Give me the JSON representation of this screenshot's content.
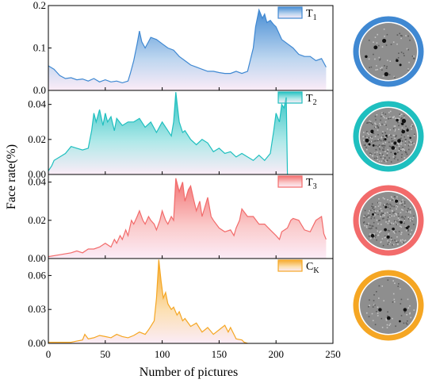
{
  "chart_data": {
    "type": "area",
    "xlabel": "Number of pictures",
    "ylabel": "Face rate(%)",
    "xlim": [
      0,
      250
    ],
    "x_ticks": [
      0,
      50,
      100,
      150,
      200,
      250
    ],
    "x_tick_labels": [
      "0",
      "50",
      "100",
      "150",
      "200",
      "250"
    ],
    "grid": false,
    "legend_position": "top-right",
    "panels": [
      {
        "name": "T",
        "subscript": "1",
        "color": "#3f88d2",
        "ylim": [
          0,
          0.2
        ],
        "yticks": [
          0,
          0.1,
          0.2
        ],
        "ytick_labels": [
          "0.0",
          "0.1",
          "0.2"
        ],
        "x": [
          0,
          5,
          10,
          15,
          20,
          25,
          30,
          35,
          40,
          45,
          50,
          55,
          60,
          65,
          70,
          72,
          75,
          78,
          80,
          82,
          85,
          88,
          90,
          95,
          100,
          105,
          110,
          115,
          120,
          125,
          130,
          135,
          140,
          145,
          150,
          155,
          160,
          165,
          170,
          175,
          180,
          182,
          185,
          188,
          190,
          192,
          195,
          198,
          200,
          205,
          210,
          215,
          220,
          225,
          230,
          235,
          240,
          244
        ],
        "y": [
          0.058,
          0.05,
          0.035,
          0.028,
          0.03,
          0.025,
          0.027,
          0.022,
          0.028,
          0.02,
          0.025,
          0.02,
          0.022,
          0.018,
          0.022,
          0.04,
          0.07,
          0.11,
          0.14,
          0.115,
          0.1,
          0.115,
          0.125,
          0.12,
          0.11,
          0.1,
          0.095,
          0.08,
          0.07,
          0.06,
          0.055,
          0.05,
          0.045,
          0.045,
          0.042,
          0.04,
          0.04,
          0.045,
          0.04,
          0.045,
          0.1,
          0.15,
          0.19,
          0.17,
          0.18,
          0.16,
          0.165,
          0.155,
          0.15,
          0.12,
          0.11,
          0.1,
          0.085,
          0.08,
          0.08,
          0.07,
          0.075,
          0.055
        ]
      },
      {
        "name": "T",
        "subscript": "2",
        "color": "#1fbfbf",
        "ylim": [
          0,
          0.048
        ],
        "yticks": [
          0,
          0.02,
          0.04
        ],
        "ytick_labels": [
          "0.00",
          "0.02",
          "0.04"
        ],
        "x": [
          0,
          3,
          5,
          10,
          15,
          20,
          25,
          30,
          35,
          38,
          40,
          42,
          45,
          48,
          50,
          52,
          55,
          58,
          60,
          65,
          70,
          75,
          80,
          85,
          90,
          95,
          100,
          105,
          108,
          110,
          112,
          115,
          118,
          120,
          125,
          130,
          135,
          140,
          145,
          150,
          155,
          160,
          165,
          170,
          175,
          180,
          185,
          190,
          195,
          198,
          200,
          203,
          205,
          207,
          209,
          210
        ],
        "y": [
          0.002,
          0.005,
          0.008,
          0.01,
          0.012,
          0.016,
          0.015,
          0.014,
          0.015,
          0.025,
          0.035,
          0.03,
          0.037,
          0.028,
          0.035,
          0.03,
          0.033,
          0.025,
          0.032,
          0.028,
          0.03,
          0.03,
          0.032,
          0.027,
          0.03,
          0.024,
          0.03,
          0.025,
          0.022,
          0.03,
          0.047,
          0.03,
          0.024,
          0.025,
          0.02,
          0.017,
          0.02,
          0.018,
          0.013,
          0.015,
          0.012,
          0.013,
          0.01,
          0.012,
          0.01,
          0.008,
          0.011,
          0.008,
          0.012,
          0.025,
          0.035,
          0.03,
          0.04,
          0.038,
          0.044,
          0.0
        ]
      },
      {
        "name": "T",
        "subscript": "3",
        "color": "#f26b6b",
        "ylim": [
          0,
          0.044
        ],
        "yticks": [
          0,
          0.02,
          0.04
        ],
        "ytick_labels": [
          "0.00",
          "0.02",
          "0.04"
        ],
        "x": [
          0,
          10,
          20,
          25,
          30,
          35,
          40,
          45,
          50,
          55,
          58,
          60,
          63,
          65,
          68,
          70,
          73,
          75,
          78,
          80,
          83,
          85,
          88,
          90,
          93,
          95,
          98,
          100,
          103,
          105,
          108,
          110,
          112,
          115,
          118,
          120,
          123,
          125,
          128,
          130,
          133,
          135,
          138,
          140,
          143,
          145,
          150,
          155,
          160,
          163,
          165,
          168,
          170,
          175,
          180,
          185,
          190,
          195,
          200,
          203,
          205,
          210,
          213,
          215,
          220,
          225,
          230,
          235,
          240,
          242,
          244
        ],
        "y": [
          0.001,
          0.002,
          0.003,
          0.004,
          0.003,
          0.005,
          0.005,
          0.006,
          0.008,
          0.006,
          0.01,
          0.008,
          0.012,
          0.01,
          0.015,
          0.012,
          0.02,
          0.018,
          0.022,
          0.025,
          0.02,
          0.018,
          0.022,
          0.02,
          0.018,
          0.015,
          0.02,
          0.025,
          0.02,
          0.018,
          0.022,
          0.02,
          0.042,
          0.035,
          0.04,
          0.03,
          0.036,
          0.038,
          0.03,
          0.025,
          0.03,
          0.022,
          0.028,
          0.032,
          0.022,
          0.02,
          0.016,
          0.014,
          0.015,
          0.012,
          0.016,
          0.02,
          0.026,
          0.022,
          0.022,
          0.018,
          0.018,
          0.015,
          0.012,
          0.01,
          0.014,
          0.016,
          0.02,
          0.021,
          0.02,
          0.015,
          0.014,
          0.02,
          0.022,
          0.013,
          0.01
        ]
      },
      {
        "name": "C",
        "subscript": "K",
        "color": "#f5a623",
        "ylim": [
          0,
          0.075
        ],
        "yticks": [
          0,
          0.03,
          0.06
        ],
        "ytick_labels": [
          "0.00",
          "0.03",
          "0.06"
        ],
        "x": [
          0,
          10,
          20,
          25,
          30,
          32,
          35,
          40,
          45,
          50,
          55,
          60,
          65,
          70,
          75,
          80,
          85,
          88,
          90,
          93,
          95,
          97,
          99,
          101,
          103,
          105,
          108,
          110,
          113,
          115,
          118,
          120,
          125,
          130,
          135,
          140,
          145,
          150,
          155,
          158,
          160,
          163,
          165,
          170,
          172,
          175
        ],
        "y": [
          0.001,
          0.001,
          0.001,
          0.002,
          0.003,
          0.008,
          0.004,
          0.005,
          0.007,
          0.006,
          0.005,
          0.008,
          0.006,
          0.005,
          0.007,
          0.01,
          0.008,
          0.012,
          0.015,
          0.02,
          0.04,
          0.074,
          0.055,
          0.04,
          0.045,
          0.035,
          0.03,
          0.032,
          0.025,
          0.028,
          0.02,
          0.022,
          0.015,
          0.018,
          0.01,
          0.014,
          0.008,
          0.012,
          0.016,
          0.01,
          0.014,
          0.008,
          0.004,
          0.003,
          0.001,
          0.0
        ]
      }
    ]
  }
}
